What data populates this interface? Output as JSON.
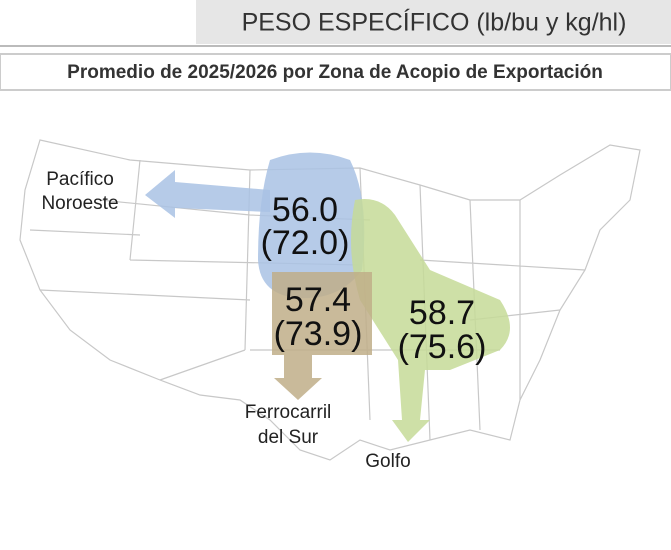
{
  "header": {
    "title": "PESO ESPECÍFICO (lb/bu y kg/hl)",
    "subtitle": "Promedio de 2025/2026 por Zona de Acopio de Exportación"
  },
  "regions": [
    {
      "name": [
        "Pacífico",
        "Noroeste"
      ],
      "lb_bu": "56.0",
      "kg_hl": "(72.0)"
    },
    {
      "name": [
        "Ferrocarril",
        "del Sur"
      ],
      "lb_bu": "57.4",
      "kg_hl": "(73.9)"
    },
    {
      "name": [
        "Golfo"
      ],
      "lb_bu": "58.7",
      "kg_hl": "(75.6)"
    }
  ]
}
